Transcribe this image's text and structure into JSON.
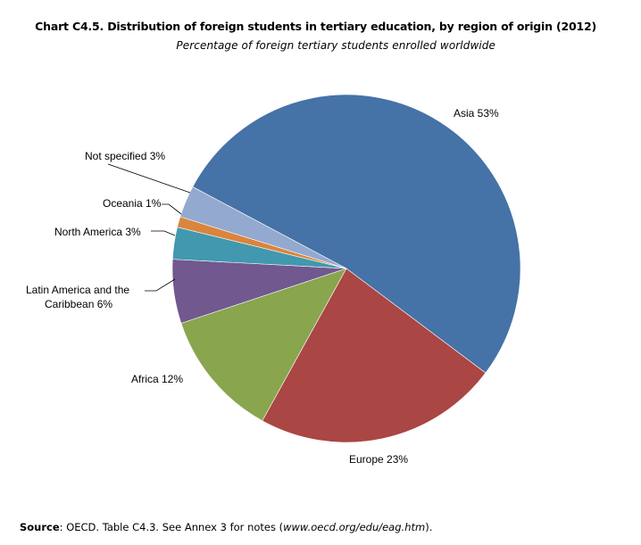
{
  "chart_data": {
    "type": "pie",
    "title": "Chart C4.5.  Distribution of foreign students in tertiary education, by region of origin (2012)",
    "subtitle": "Percentage of foreign tertiary students enrolled worldwide",
    "slices": [
      {
        "name": "Asia",
        "value": 53,
        "label": "Asia  53%",
        "color": "#4572A7"
      },
      {
        "name": "Europe",
        "value": 23,
        "label": "Europe  23%",
        "color": "#AA4643"
      },
      {
        "name": "Africa",
        "value": 12,
        "label": "Africa  12%",
        "color": "#89A54E"
      },
      {
        "name": "Latin America and the Caribbean",
        "value": 6,
        "label_lines": [
          "Latin America and the",
          "Caribbean  6%"
        ],
        "color": "#71588F"
      },
      {
        "name": "North America",
        "value": 3,
        "label": "North America  3%",
        "color": "#4198AF"
      },
      {
        "name": "Oceania",
        "value": 1,
        "label": "Oceania  1%",
        "color": "#DB843D"
      },
      {
        "name": "Not specified",
        "value": 3,
        "label": "Not specified  3%",
        "color": "#93A9CF"
      }
    ]
  },
  "source": {
    "prefix": "Source",
    "text": ": OECD. Table C4.3. See Annex 3 for notes (",
    "link": "www.oecd.org/edu/eag.htm",
    "suffix": ")."
  }
}
